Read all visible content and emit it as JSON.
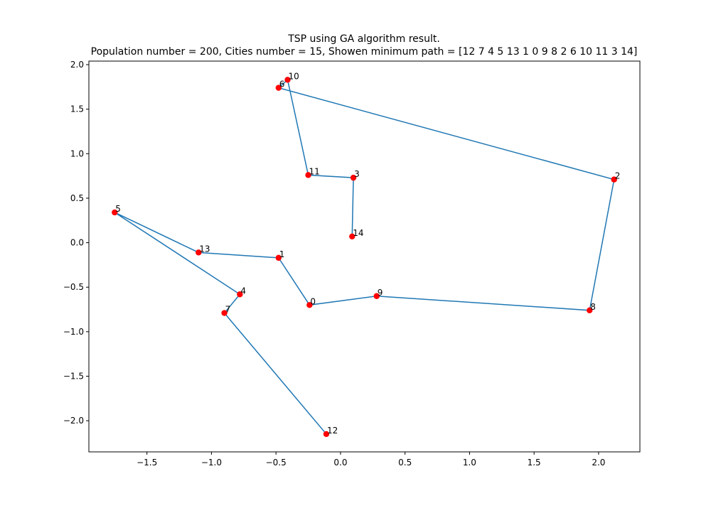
{
  "chart_data": {
    "type": "line",
    "title": "TSP using GA algorithm result.",
    "subtitle": "Population number = 200, Cities number = 15, Showen minimum path = [12  7  4  5 13  1  0  9  8  2  6 10 11  3 14]",
    "xlabel": "",
    "ylabel": "",
    "xlim": [
      -1.95,
      2.32
    ],
    "ylim": [
      -2.35,
      2.04
    ],
    "xticks": [
      -1.5,
      -1.0,
      -0.5,
      0.0,
      0.5,
      1.0,
      1.5,
      2.0
    ],
    "xtick_labels": [
      "−1.5",
      "−1.0",
      "−0.5",
      "0.0",
      "0.5",
      "1.0",
      "1.5",
      "2.0"
    ],
    "yticks": [
      -2.0,
      -1.5,
      -1.0,
      -0.5,
      0.0,
      0.5,
      1.0,
      1.5,
      2.0
    ],
    "ytick_labels": [
      "−2.0",
      "−1.5",
      "−1.0",
      "−0.5",
      "0.0",
      "0.5",
      "1.0",
      "1.5",
      "2.0"
    ],
    "grid": false,
    "line_color": "#1f77b4",
    "point_color": "#ff0000",
    "cities": [
      {
        "label": "0",
        "x": -0.24,
        "y": -0.7
      },
      {
        "label": "1",
        "x": -0.48,
        "y": -0.17
      },
      {
        "label": "2",
        "x": 2.12,
        "y": 0.71
      },
      {
        "label": "3",
        "x": 0.1,
        "y": 0.73
      },
      {
        "label": "4",
        "x": -0.78,
        "y": -0.58
      },
      {
        "label": "5",
        "x": -1.75,
        "y": 0.34
      },
      {
        "label": "6",
        "x": -0.48,
        "y": 1.74
      },
      {
        "label": "7",
        "x": -0.9,
        "y": -0.79
      },
      {
        "label": "8",
        "x": 1.93,
        "y": -0.76
      },
      {
        "label": "9",
        "x": 0.28,
        "y": -0.6
      },
      {
        "label": "10",
        "x": -0.41,
        "y": 1.83
      },
      {
        "label": "11",
        "x": -0.25,
        "y": 0.76
      },
      {
        "label": "12",
        "x": -0.11,
        "y": -2.15
      },
      {
        "label": "13",
        "x": -1.1,
        "y": -0.11
      },
      {
        "label": "14",
        "x": 0.09,
        "y": 0.07
      }
    ],
    "path_order": [
      12,
      7,
      4,
      5,
      13,
      1,
      0,
      9,
      8,
      2,
      6,
      10,
      11,
      3,
      14
    ]
  }
}
